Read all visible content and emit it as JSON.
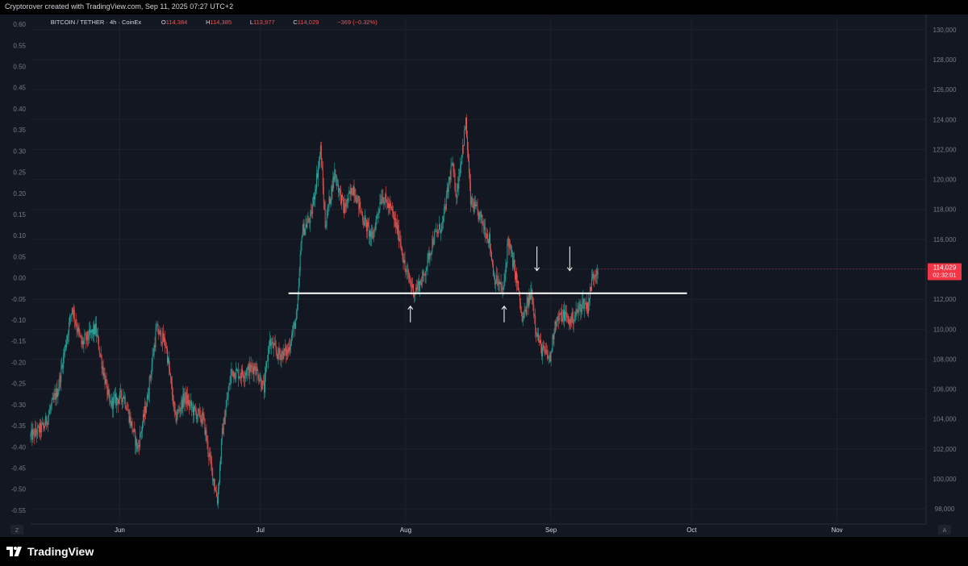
{
  "header": {
    "credit": "Cryptorover created with TradingView.com, Sep 11, 2025 07:27 UTC+2"
  },
  "legend": {
    "symbol": "BITCOIN / TETHER · 4h · CoinEx",
    "o_label": "O",
    "o_value": "114,384",
    "h_label": "H",
    "h_value": "114,385",
    "l_label": "L",
    "l_value": "113,977",
    "c_label": "C",
    "c_value": "114,029",
    "change": "−369 (−0.32%)"
  },
  "price_badge": {
    "price": "114,029",
    "countdown": "02:32:01"
  },
  "corner_left": "Z",
  "corner_right": "A",
  "footer": {
    "brand": "TradingView"
  },
  "colors": {
    "background": "#131722",
    "up": "#26a69a",
    "down": "#ef5350",
    "grid": "#1e222d",
    "text": "#d1d4dc",
    "axis_text": "#787b86",
    "line": "#ffffff"
  },
  "chart_data": {
    "type": "candlestick",
    "symbol": "BITCOIN / TETHER",
    "interval": "4h",
    "exchange": "CoinEx",
    "x_labels": [
      "Jun",
      "Jul",
      "Aug",
      "Sep",
      "Oct",
      "Nov"
    ],
    "x_dates": [
      "2025-06-01",
      "2025-07-01",
      "2025-08-01",
      "2025-09-01",
      "2025-10-01",
      "2025-11-01"
    ],
    "x_range": [
      "2025-05-13",
      "2025-11-20"
    ],
    "right_axis": {
      "ticks": [
        98000,
        100000,
        102000,
        104000,
        106000,
        108000,
        110000,
        112000,
        114000,
        116000,
        118000,
        120000,
        122000,
        124000,
        126000,
        128000,
        130000
      ],
      "range": [
        97200,
        130800
      ]
    },
    "left_axis": {
      "ticks": [
        0.6,
        0.55,
        0.5,
        0.45,
        0.4,
        0.35,
        0.3,
        0.25,
        0.2,
        0.15,
        0.1,
        0.05,
        0.0,
        -0.05,
        -0.1,
        -0.15,
        -0.2,
        -0.25,
        -0.3,
        -0.35,
        -0.4,
        -0.45,
        -0.5,
        -0.55
      ],
      "range": [
        -0.575,
        0.6155
      ]
    },
    "price_path": [
      [
        "2025-05-13",
        102800
      ],
      [
        "2025-05-16",
        103500
      ],
      [
        "2025-05-19",
        106000
      ],
      [
        "2025-05-22",
        111500
      ],
      [
        "2025-05-24",
        109000
      ],
      [
        "2025-05-27",
        110000
      ],
      [
        "2025-05-30",
        105000
      ],
      [
        "2025-06-02",
        105600
      ],
      [
        "2025-06-05",
        102000
      ],
      [
        "2025-06-07",
        105300
      ],
      [
        "2025-06-09",
        110000
      ],
      [
        "2025-06-11",
        109000
      ],
      [
        "2025-06-13",
        104000
      ],
      [
        "2025-06-15",
        105500
      ],
      [
        "2025-06-17",
        104500
      ],
      [
        "2025-06-19",
        104000
      ],
      [
        "2025-06-20",
        102000
      ],
      [
        "2025-06-22",
        98600
      ],
      [
        "2025-06-23",
        103000
      ],
      [
        "2025-06-25",
        107200
      ],
      [
        "2025-06-27",
        107000
      ],
      [
        "2025-06-30",
        107500
      ],
      [
        "2025-07-02",
        106000
      ],
      [
        "2025-07-03",
        109200
      ],
      [
        "2025-07-05",
        108300
      ],
      [
        "2025-07-07",
        108500
      ],
      [
        "2025-07-09",
        111000
      ],
      [
        "2025-07-10",
        116500
      ],
      [
        "2025-07-12",
        117500
      ],
      [
        "2025-07-14",
        122000
      ],
      [
        "2025-07-15",
        117000
      ],
      [
        "2025-07-17",
        120500
      ],
      [
        "2025-07-19",
        118000
      ],
      [
        "2025-07-21",
        119500
      ],
      [
        "2025-07-23",
        117500
      ],
      [
        "2025-07-25",
        116000
      ],
      [
        "2025-07-27",
        119000
      ],
      [
        "2025-07-29",
        118000
      ],
      [
        "2025-07-31",
        116000
      ],
      [
        "2025-08-01",
        114000
      ],
      [
        "2025-08-03",
        112500
      ],
      [
        "2025-08-05",
        113500
      ],
      [
        "2025-08-07",
        116000
      ],
      [
        "2025-08-09",
        117000
      ],
      [
        "2025-08-11",
        121000
      ],
      [
        "2025-08-12",
        119000
      ],
      [
        "2025-08-14",
        123800
      ],
      [
        "2025-08-15",
        118500
      ],
      [
        "2025-08-17",
        117500
      ],
      [
        "2025-08-19",
        116000
      ],
      [
        "2025-08-20",
        113500
      ],
      [
        "2025-08-22",
        112500
      ],
      [
        "2025-08-23",
        116000
      ],
      [
        "2025-08-25",
        113000
      ],
      [
        "2025-08-26",
        110500
      ],
      [
        "2025-08-28",
        112500
      ],
      [
        "2025-08-29",
        110000
      ],
      [
        "2025-08-30",
        108700
      ],
      [
        "2025-09-01",
        108000
      ],
      [
        "2025-09-02",
        110500
      ],
      [
        "2025-09-04",
        111000
      ],
      [
        "2025-09-05",
        110500
      ],
      [
        "2025-09-06",
        110800
      ],
      [
        "2025-09-08",
        111800
      ],
      [
        "2025-09-09",
        111500
      ],
      [
        "2025-09-10",
        113500
      ],
      [
        "2025-09-11",
        114029
      ]
    ],
    "horizontal_line": {
      "price": 112400,
      "start": "2025-07-07",
      "end": "2025-09-30"
    },
    "arrows": [
      {
        "date": "2025-08-02",
        "direction": "up"
      },
      {
        "date": "2025-08-22",
        "direction": "up"
      },
      {
        "date": "2025-08-29",
        "direction": "down"
      },
      {
        "date": "2025-09-05",
        "direction": "down"
      }
    ],
    "last_price": 114029,
    "last_price_countdown": "02:32:01"
  }
}
